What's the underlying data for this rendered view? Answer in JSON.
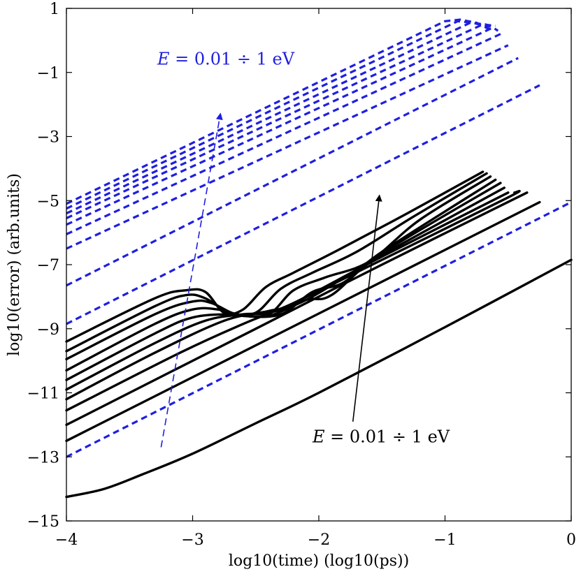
{
  "chart_data": {
    "type": "line",
    "title": "",
    "xlabel": "log10(time) (log10(ps))",
    "ylabel": "log10(error) (arb.units)",
    "xlim": [
      -4,
      0
    ],
    "ylim": [
      -15,
      1
    ],
    "xticks": [
      "−4",
      "−3",
      "−2",
      "−1",
      "0"
    ],
    "yticks": [
      "−15",
      "−13",
      "−11",
      "−9",
      "−7",
      "−5",
      "−3",
      "−1",
      "1"
    ],
    "xtick_values": [
      -4,
      -3,
      -2,
      -1,
      0
    ],
    "ytick_values": [
      -15,
      -13,
      -11,
      -9,
      -7,
      -5,
      -3,
      -1,
      1
    ],
    "grid": false,
    "colors": {
      "solid": "#000000",
      "dashed": "#1f1fe0"
    },
    "annotations": [
      {
        "text": "E = 0.01 ÷ 1 eV",
        "math_var": "E",
        "rest": " = 0.01 ÷ 1 eV",
        "color": "#1f1fe0",
        "x": -3.28,
        "y": -0.75
      },
      {
        "text": "E = 0.01 ÷ 1 eV",
        "math_var": "E",
        "rest": " = 0.01 ÷ 1 eV",
        "color": "#000000",
        "x": -2.05,
        "y": -12.55
      }
    ],
    "arrows": [
      {
        "color": "#1f1fe0",
        "style": "dashed",
        "from": [
          -3.25,
          -12.7
        ],
        "to": [
          -2.78,
          -2.3
        ]
      },
      {
        "color": "#000000",
        "style": "solid",
        "from": [
          -1.73,
          -11.9
        ],
        "to": [
          -1.52,
          -4.85
        ]
      }
    ],
    "dashed_series": [
      {
        "name": "dashed-1",
        "points": [
          [
            -4,
            -13.0
          ],
          [
            -0.0,
            -5.05
          ]
        ]
      },
      {
        "name": "dashed-2",
        "points": [
          [
            -4,
            -8.85
          ],
          [
            -0.25,
            -1.4
          ]
        ]
      },
      {
        "name": "dashed-3",
        "points": [
          [
            -4,
            -7.65
          ],
          [
            -0.42,
            -0.55
          ]
        ]
      },
      {
        "name": "dashed-4",
        "points": [
          [
            -4,
            -6.5
          ],
          [
            -0.5,
            -0.15
          ]
        ]
      },
      {
        "name": "dashed-5",
        "points": [
          [
            -4,
            -6.05
          ],
          [
            -0.56,
            0.2
          ]
        ]
      },
      {
        "name": "dashed-6",
        "points": [
          [
            -4,
            -5.75
          ],
          [
            -0.62,
            0.4
          ],
          [
            -0.58,
            0.3
          ]
        ]
      },
      {
        "name": "dashed-7",
        "points": [
          [
            -4,
            -5.55
          ],
          [
            -0.7,
            0.5
          ],
          [
            -0.6,
            0.45
          ]
        ]
      },
      {
        "name": "dashed-8",
        "points": [
          [
            -4,
            -5.4
          ],
          [
            -0.8,
            0.55
          ],
          [
            -0.68,
            0.5
          ],
          [
            -0.62,
            0.4
          ]
        ]
      },
      {
        "name": "dashed-9",
        "points": [
          [
            -4,
            -5.25
          ],
          [
            -0.9,
            0.6
          ],
          [
            -0.78,
            0.55
          ],
          [
            -0.68,
            0.45
          ],
          [
            -0.63,
            0.3
          ]
        ]
      },
      {
        "name": "dashed-10",
        "points": [
          [
            -4,
            -5.1
          ],
          [
            -1.0,
            0.6
          ],
          [
            -0.88,
            0.65
          ],
          [
            -0.75,
            0.55
          ],
          [
            -0.65,
            0.35
          ]
        ]
      }
    ],
    "solid_series": [
      {
        "name": "solid-bottom",
        "points": [
          [
            -4,
            -14.25
          ],
          [
            -3.7,
            -14.0
          ],
          [
            -3.4,
            -13.55
          ],
          [
            -3.0,
            -12.9
          ],
          [
            -2.5,
            -11.95
          ],
          [
            -2.0,
            -11.0
          ],
          [
            -1.0,
            -8.95
          ],
          [
            0,
            -6.85
          ]
        ]
      },
      {
        "name": "solid-1",
        "points": [
          [
            -4,
            -12.5
          ],
          [
            -0.25,
            -5.05
          ]
        ]
      },
      {
        "name": "solid-2",
        "points": [
          [
            -4,
            -12.0
          ],
          [
            -2.5,
            -9.0
          ],
          [
            -1.5,
            -7.0
          ],
          [
            -0.35,
            -4.75
          ]
        ]
      },
      {
        "name": "solid-3",
        "points": [
          [
            -4,
            -11.55
          ],
          [
            -3.1,
            -9.75
          ],
          [
            -2.6,
            -8.85
          ],
          [
            -2.2,
            -8.2
          ],
          [
            -1.5,
            -6.85
          ],
          [
            -0.5,
            -4.9
          ],
          [
            -0.45,
            -4.75
          ]
        ]
      },
      {
        "name": "solid-4",
        "points": [
          [
            -4,
            -11.2
          ],
          [
            -3.3,
            -9.75
          ],
          [
            -2.75,
            -8.75
          ],
          [
            -2.4,
            -8.45
          ],
          [
            -2.2,
            -8.2
          ],
          [
            -1.5,
            -6.75
          ],
          [
            -0.5,
            -4.75
          ]
        ]
      },
      {
        "name": "solid-5",
        "points": [
          [
            -4,
            -10.9
          ],
          [
            -3.3,
            -9.45
          ],
          [
            -2.9,
            -8.75
          ],
          [
            -2.6,
            -8.55
          ],
          [
            -2.4,
            -8.5
          ],
          [
            -2.1,
            -8.1
          ],
          [
            -1.5,
            -6.7
          ],
          [
            -0.53,
            -4.6
          ]
        ]
      },
      {
        "name": "solid-6",
        "points": [
          [
            -4,
            -10.6
          ],
          [
            -3.3,
            -9.15
          ],
          [
            -3.0,
            -8.65
          ],
          [
            -2.7,
            -8.55
          ],
          [
            -2.4,
            -8.6
          ],
          [
            -2.1,
            -8.1
          ],
          [
            -1.9,
            -7.95
          ],
          [
            -1.5,
            -6.65
          ],
          [
            -0.56,
            -4.45
          ]
        ]
      },
      {
        "name": "solid-7",
        "points": [
          [
            -4,
            -10.3
          ],
          [
            -3.3,
            -8.85
          ],
          [
            -3.0,
            -8.4
          ],
          [
            -2.8,
            -8.4
          ],
          [
            -2.6,
            -8.6
          ],
          [
            -2.3,
            -8.55
          ],
          [
            -2.05,
            -7.85
          ],
          [
            -1.8,
            -7.55
          ],
          [
            -1.5,
            -6.6
          ],
          [
            -0.6,
            -4.35
          ]
        ]
      },
      {
        "name": "solid-8",
        "points": [
          [
            -4,
            -9.95
          ],
          [
            -3.3,
            -8.55
          ],
          [
            -3.0,
            -8.15
          ],
          [
            -2.85,
            -8.2
          ],
          [
            -2.65,
            -8.55
          ],
          [
            -2.4,
            -8.55
          ],
          [
            -2.2,
            -7.8
          ],
          [
            -1.95,
            -7.4
          ],
          [
            -1.6,
            -6.9
          ],
          [
            -1.2,
            -5.6
          ],
          [
            -0.64,
            -4.25
          ]
        ]
      },
      {
        "name": "solid-9",
        "points": [
          [
            -4,
            -9.7
          ],
          [
            -3.3,
            -8.3
          ],
          [
            -3.05,
            -7.95
          ],
          [
            -2.9,
            -8.05
          ],
          [
            -2.7,
            -8.5
          ],
          [
            -2.5,
            -8.5
          ],
          [
            -2.3,
            -7.75
          ],
          [
            -2.05,
            -7.25
          ],
          [
            -1.7,
            -6.6
          ],
          [
            -1.25,
            -5.5
          ],
          [
            -0.67,
            -4.15
          ]
        ]
      },
      {
        "name": "solid-10",
        "points": [
          [
            -4,
            -9.4
          ],
          [
            -3.3,
            -8.05
          ],
          [
            -3.05,
            -7.8
          ],
          [
            -2.9,
            -7.85
          ],
          [
            -2.75,
            -8.5
          ],
          [
            -2.6,
            -8.4
          ],
          [
            -2.42,
            -7.7
          ],
          [
            -2.2,
            -7.25
          ],
          [
            -1.85,
            -6.55
          ],
          [
            -1.3,
            -5.4
          ],
          [
            -0.7,
            -4.1
          ]
        ]
      }
    ]
  }
}
